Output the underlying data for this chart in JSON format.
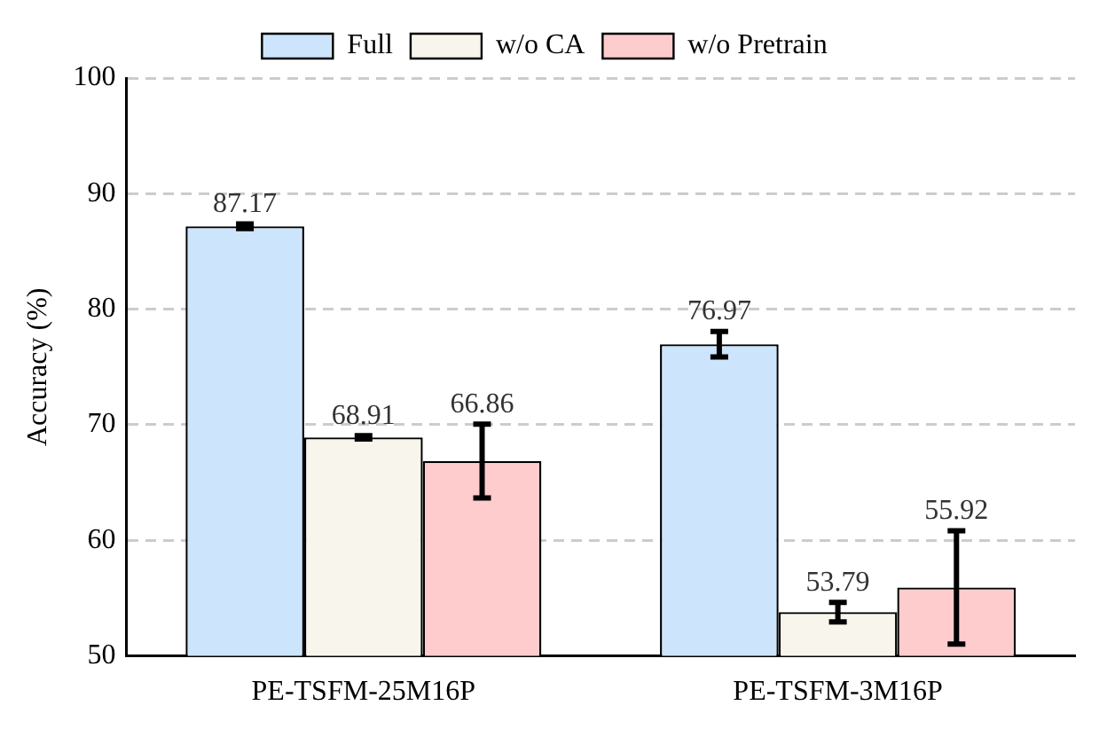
{
  "chart_data": {
    "type": "bar",
    "ylabel": "Accuracy (%)",
    "categories": [
      "PE-TSFM-25M16P",
      "PE-TSFM-3M16P"
    ],
    "series": [
      {
        "name": "Full",
        "color": "#cce4fc",
        "values": [
          87.17,
          76.97
        ],
        "errors": [
          0.2,
          1.1
        ]
      },
      {
        "name": "w/o CA",
        "color": "#f8f5ec",
        "values": [
          68.91,
          53.79
        ],
        "errors": [
          0.15,
          0.85
        ]
      },
      {
        "name": "w/o Pretrain",
        "color": "#fecccc",
        "values": [
          66.86,
          55.92
        ],
        "errors": [
          3.2,
          4.9
        ]
      }
    ],
    "ylim": [
      50,
      100
    ],
    "yticks": [
      50,
      60,
      70,
      80,
      90,
      100
    ],
    "grid": "y",
    "legend": "top",
    "data_labels": true
  }
}
